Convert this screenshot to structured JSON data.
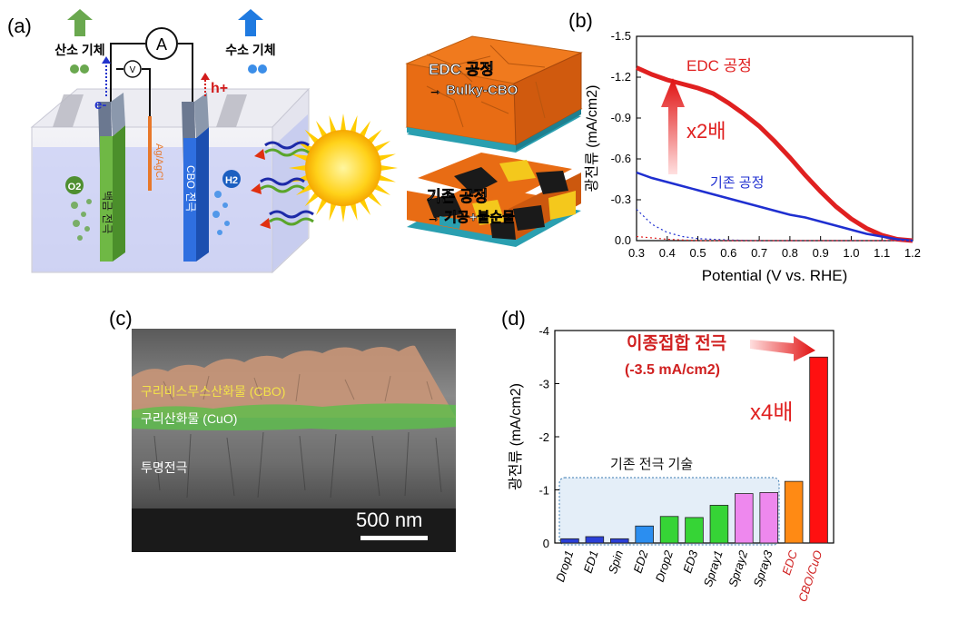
{
  "panels": {
    "a": {
      "label": "(a)",
      "oxygen_gas": "산소 기체",
      "hydrogen_gas": "수소 기체",
      "ammeter": "A",
      "voltmeter": "V",
      "electron": "e-",
      "hole": "h+",
      "reference": "Ag/AgCl",
      "pt_electrode": "백금 전극",
      "cbo_electrode": "CBO 전극",
      "o2": "O2",
      "h2": "H2",
      "edc_box": {
        "line1": "EDC 공정",
        "line2": "→ Bulky-CBO"
      },
      "conv_box": {
        "line1": "기존 공정",
        "line2": "→ 기공+불순물"
      },
      "colors": {
        "oxygen_arrow": "#6aa84f",
        "hydrogen_arrow": "#1f7ae0",
        "tile_orange": "#f07a1e",
        "tile_teal": "#2a9fb0"
      }
    },
    "b": {
      "label": "(b)",
      "annot_edc": "EDC 공정",
      "annot_x2": "x2배",
      "annot_conv": "기존 공정"
    },
    "c": {
      "label": "(c)",
      "cbo": "구리비스무스산화물 (CBO)",
      "cuo": "구리산화물 (CuO)",
      "fto": "투명전극",
      "scale": "500 nm"
    },
    "d": {
      "label": "(d)",
      "annot_hetero": "이종접합 전극",
      "annot_value": "(-3.5 mA/cm2)",
      "annot_x4": "x4배",
      "annot_conv": "기존 전극 기술"
    }
  },
  "chart_data": [
    {
      "type": "line",
      "panel": "b",
      "xlabel": "Potential (V vs. RHE)",
      "ylabel": "광전류 (mA/cm2)",
      "xlim": [
        0.3,
        1.2
      ],
      "ylim": [
        0.0,
        -1.5
      ],
      "xticks": [
        "0.3",
        "0.4",
        "0.5",
        "0.6",
        "0.7",
        "0.8",
        "0.9",
        "1.0",
        "1.1",
        "1.2"
      ],
      "yticks": [
        "0.0",
        "-0.3",
        "-0.6",
        "-0.9",
        "-1.2",
        "-1.5"
      ],
      "series": [
        {
          "name": "EDC 공정",
          "color": "#e02020",
          "x": [
            0.3,
            0.35,
            0.4,
            0.45,
            0.5,
            0.55,
            0.6,
            0.65,
            0.7,
            0.75,
            0.8,
            0.85,
            0.9,
            0.95,
            1.0,
            1.05,
            1.1,
            1.15,
            1.2
          ],
          "y": [
            -1.27,
            -1.22,
            -1.18,
            -1.15,
            -1.12,
            -1.08,
            -1.01,
            -0.93,
            -0.84,
            -0.73,
            -0.61,
            -0.48,
            -0.36,
            -0.25,
            -0.16,
            -0.09,
            -0.04,
            -0.01,
            0.0
          ]
        },
        {
          "name": "기존 공정",
          "color": "#1f2fd0",
          "x": [
            0.3,
            0.35,
            0.4,
            0.45,
            0.5,
            0.55,
            0.6,
            0.65,
            0.7,
            0.75,
            0.8,
            0.85,
            0.9,
            0.95,
            1.0,
            1.05,
            1.1,
            1.15,
            1.2
          ],
          "y": [
            -0.5,
            -0.46,
            -0.43,
            -0.4,
            -0.37,
            -0.34,
            -0.31,
            -0.28,
            -0.25,
            -0.22,
            -0.19,
            -0.17,
            -0.14,
            -0.11,
            -0.08,
            -0.05,
            -0.03,
            -0.01,
            0.0
          ]
        },
        {
          "color": "#1f2fd0",
          "dashed": true,
          "x": [
            0.3,
            0.35,
            0.4,
            0.45,
            0.5,
            0.6,
            0.7,
            0.8,
            1.0,
            1.2
          ],
          "y": [
            -0.23,
            -0.12,
            -0.06,
            -0.03,
            -0.015,
            -0.005,
            0.0,
            0.0,
            0.0,
            0.0
          ]
        },
        {
          "color": "#e02020",
          "dashed": true,
          "x": [
            0.3,
            0.4,
            0.5,
            0.7,
            0.9,
            1.2
          ],
          "y": [
            -0.03,
            -0.01,
            0.0,
            0.0,
            0.0,
            0.0
          ]
        }
      ]
    },
    {
      "type": "bar",
      "panel": "d",
      "ylabel": "광전류 (mA/cm2)",
      "ylim": [
        0,
        -4
      ],
      "yticks": [
        "0",
        "-1",
        "-2",
        "-3",
        "-4"
      ],
      "categories": [
        "Drop1",
        "ED1",
        "Spin",
        "ED2",
        "Drop2",
        "ED3",
        "Spray1",
        "Spray2",
        "Spray3",
        "EDC",
        "CBO/CuO"
      ],
      "values": [
        -0.08,
        -0.12,
        -0.08,
        -0.32,
        -0.5,
        -0.48,
        -0.71,
        -0.93,
        -0.95,
        -1.16,
        -3.5
      ],
      "colors": [
        "#2a3fd8",
        "#2a3fd8",
        "#2a3fd8",
        "#2b8ef0",
        "#36d436",
        "#36d436",
        "#36d436",
        "#ee88ee",
        "#ee88ee",
        "#ff8a14",
        "#ff1010"
      ],
      "label_colors": [
        "#000",
        "#000",
        "#000",
        "#000",
        "#000",
        "#000",
        "#000",
        "#000",
        "#000",
        "#d02020",
        "#d02020"
      ]
    }
  ]
}
